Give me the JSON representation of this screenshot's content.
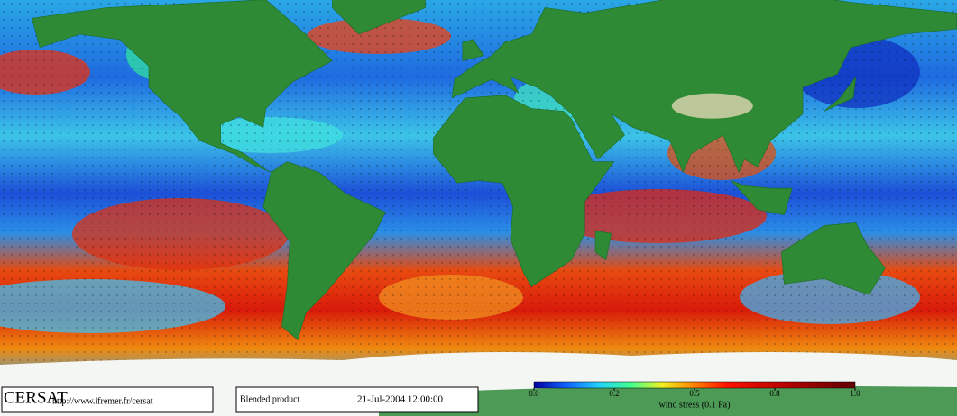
{
  "footer": {
    "brand": "CERSAT",
    "url": "http://www.ifremer.fr/cersat",
    "product": "Blended product",
    "date": "21-Jul-2004 12:00:00"
  },
  "colorbar": {
    "label": "wind stress (0.1 Pa)",
    "ticks": [
      {
        "value": 0,
        "label": "0.0"
      },
      0.2,
      0.5,
      0.8,
      {
        "value": 1,
        "label": "1.0"
      }
    ]
  }
}
